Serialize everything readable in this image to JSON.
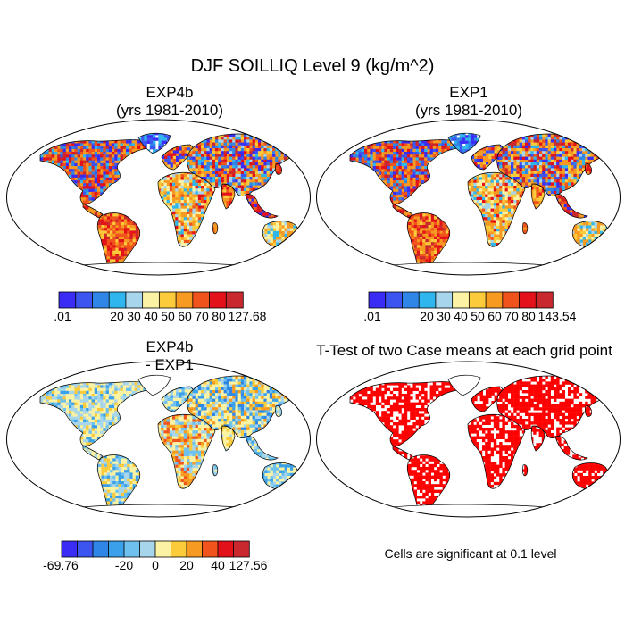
{
  "figure": {
    "title": "DJF SOILLIQ Level 9 (kg/m^2)"
  },
  "panels": [
    {
      "id": "exp4b",
      "title_line1": "EXP4b",
      "title_line2": "(yrs 1981-2010)",
      "field": "absolute",
      "colorbar": {
        "colors": [
          "#3b2cf5",
          "#3d55f0",
          "#2f86e6",
          "#2fb6ee",
          "#a6d5ec",
          "#fbf3a3",
          "#fccb3b",
          "#f79a22",
          "#f0531b",
          "#e31119",
          "#c8282e"
        ],
        "tick_labels": [
          "127.68",
          "80",
          "70",
          "60",
          "50",
          "40",
          "30",
          "20",
          ".01"
        ]
      }
    },
    {
      "id": "exp1",
      "title_line1": "EXP1",
      "title_line2": "(yrs 1981-2010)",
      "field": "absolute",
      "colorbar": {
        "colors": [
          "#3b2cf5",
          "#3d55f0",
          "#2f86e6",
          "#2fb6ee",
          "#a6d5ec",
          "#fbf3a3",
          "#fccb3b",
          "#f79a22",
          "#f0531b",
          "#e31119",
          "#c8282e"
        ],
        "tick_labels": [
          "143.54",
          "80",
          "70",
          "60",
          "50",
          "40",
          "30",
          "20",
          ".01"
        ]
      }
    },
    {
      "id": "diff",
      "title_line1": "EXP4b",
      "title_line2": "- EXP1",
      "field": "difference",
      "colorbar": {
        "colors": [
          "#3b2cf5",
          "#3d55f0",
          "#2f86e6",
          "#3aa0ea",
          "#6ec0ee",
          "#a6d5ec",
          "#fbf3a3",
          "#fccb3b",
          "#f79a22",
          "#f0531b",
          "#e31119",
          "#c8282e"
        ],
        "tick_labels": [
          "127.56",
          "40",
          "20",
          "0",
          "-20",
          "-69.76"
        ]
      }
    },
    {
      "id": "ttest",
      "title_line1": "T-Test of two Case means at each grid point",
      "title_line2": "",
      "field": "significance",
      "note": "Cells are significant at 0.1 level",
      "significance_color": "#ff0000"
    }
  ]
}
